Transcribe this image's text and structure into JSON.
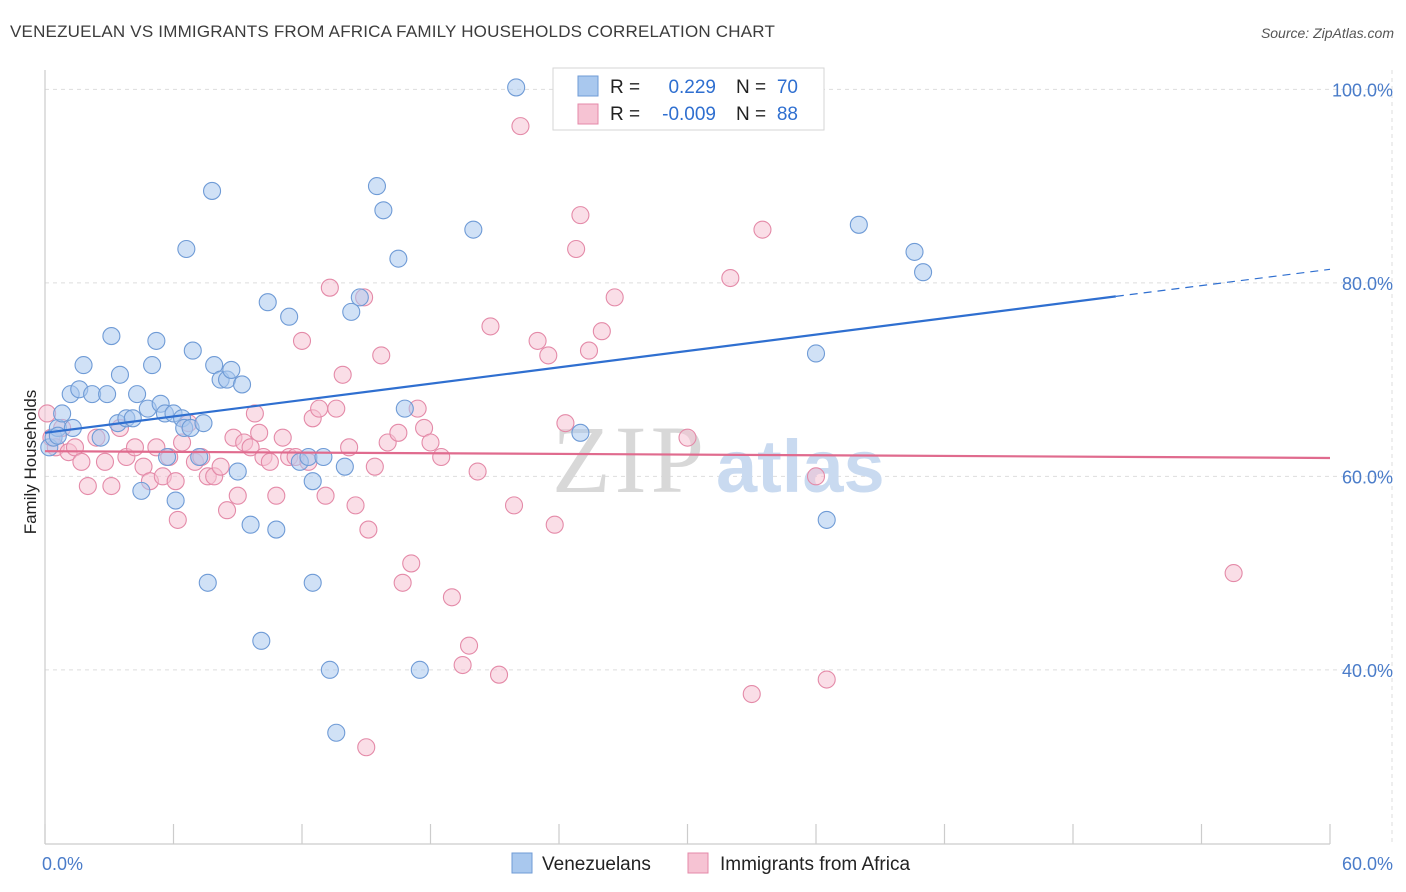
{
  "title": "VENEZUELAN VS IMMIGRANTS FROM AFRICA FAMILY HOUSEHOLDS CORRELATION CHART",
  "source": "Source: ZipAtlas.com",
  "watermark": {
    "zip": "ZIP",
    "atlas": "atlas"
  },
  "colors": {
    "blue_fill": "#a9c8ee",
    "blue_stroke": "#6f9bd6",
    "blue_line": "#2f6fd0",
    "pink_fill": "#f6c3d3",
    "pink_stroke": "#e48aa8",
    "pink_line": "#e06b8e",
    "grid": "#dddddd",
    "tick_text": "#4a7cc9"
  },
  "legend": {
    "r_label": "R =",
    "n_label": "N =",
    "rows": [
      {
        "r": "0.229",
        "n": "70",
        "series": "blue"
      },
      {
        "r": "-0.009",
        "n": "88",
        "series": "pink"
      }
    ]
  },
  "chart_data": {
    "type": "scatter",
    "title": "VENEZUELAN VS IMMIGRANTS FROM AFRICA FAMILY HOUSEHOLDS CORRELATION CHART",
    "xlabel": "",
    "ylabel": "Family Households",
    "xlim": [
      0,
      60
    ],
    "ylim": [
      22,
      102
    ],
    "x_tick_labels": [
      "0.0%",
      "60.0%"
    ],
    "y_ticks": [
      40,
      60,
      80,
      100
    ],
    "y_tick_labels": [
      "40.0%",
      "60.0%",
      "80.0%",
      "100.0%"
    ],
    "grid": true,
    "legend_position": "top-center",
    "series": [
      {
        "name": "Venezuelans",
        "color": "#a9c8ee",
        "trend": {
          "x": [
            0,
            50
          ],
          "y": [
            64.5,
            78.6
          ],
          "dashed_extension": {
            "x": [
              50,
              60
            ],
            "y": [
              78.6,
              81.4
            ]
          }
        },
        "points": [
          [
            0.2,
            63
          ],
          [
            0.4,
            64
          ],
          [
            0.6,
            65
          ],
          [
            0.8,
            66.5
          ],
          [
            1.2,
            68.5
          ],
          [
            1.3,
            65
          ],
          [
            1.6,
            69
          ],
          [
            1.8,
            71.5
          ],
          [
            2.2,
            68.5
          ],
          [
            2.6,
            64
          ],
          [
            2.9,
            68.5
          ],
          [
            3.1,
            74.5
          ],
          [
            3.4,
            65.5
          ],
          [
            3.5,
            70.5
          ],
          [
            3.8,
            66
          ],
          [
            4.1,
            66
          ],
          [
            4.3,
            68.5
          ],
          [
            4.5,
            58.5
          ],
          [
            4.8,
            67
          ],
          [
            5.0,
            71.5
          ],
          [
            5.2,
            74
          ],
          [
            5.4,
            67.5
          ],
          [
            5.6,
            66.5
          ],
          [
            5.7,
            62
          ],
          [
            6.0,
            66.5
          ],
          [
            6.1,
            57.5
          ],
          [
            6.4,
            66
          ],
          [
            6.5,
            65
          ],
          [
            6.6,
            83.5
          ],
          [
            6.8,
            65
          ],
          [
            6.9,
            73
          ],
          [
            7.2,
            62
          ],
          [
            7.4,
            65.5
          ],
          [
            7.6,
            49
          ],
          [
            7.8,
            89.5
          ],
          [
            7.9,
            71.5
          ],
          [
            8.2,
            70
          ],
          [
            8.5,
            70
          ],
          [
            8.7,
            71
          ],
          [
            9.0,
            60.5
          ],
          [
            9.2,
            69.5
          ],
          [
            9.6,
            55
          ],
          [
            10.1,
            43
          ],
          [
            10.4,
            78
          ],
          [
            10.8,
            54.5
          ],
          [
            11.4,
            76.5
          ],
          [
            11.9,
            61.5
          ],
          [
            12.3,
            62
          ],
          [
            12.5,
            59.5
          ],
          [
            12.5,
            49
          ],
          [
            13.0,
            62
          ],
          [
            13.3,
            40
          ],
          [
            13.6,
            33.5
          ],
          [
            14.0,
            61
          ],
          [
            14.3,
            77
          ],
          [
            14.7,
            78.5
          ],
          [
            15.5,
            90
          ],
          [
            15.8,
            87.5
          ],
          [
            16.5,
            82.5
          ],
          [
            16.8,
            67
          ],
          [
            17.5,
            40
          ],
          [
            20,
            85.5
          ],
          [
            22,
            100.2
          ],
          [
            25,
            64.5
          ],
          [
            36,
            72.7
          ],
          [
            36.5,
            55.5
          ],
          [
            38,
            86
          ],
          [
            40.6,
            83.2
          ],
          [
            41,
            81.1
          ],
          [
            0.6,
            64.2
          ]
        ]
      },
      {
        "name": "Immigrants from Africa",
        "color": "#f6c3d3",
        "trend": {
          "x": [
            0,
            60
          ],
          "y": [
            62.6,
            61.9
          ]
        },
        "points": [
          [
            0.1,
            66.5
          ],
          [
            0.3,
            64
          ],
          [
            0.5,
            63
          ],
          [
            0.8,
            65
          ],
          [
            1.1,
            62.5
          ],
          [
            1.4,
            63
          ],
          [
            1.7,
            61.5
          ],
          [
            2.0,
            59
          ],
          [
            2.4,
            64
          ],
          [
            2.8,
            61.5
          ],
          [
            3.1,
            59
          ],
          [
            3.5,
            65
          ],
          [
            3.8,
            62
          ],
          [
            4.2,
            63
          ],
          [
            4.6,
            61
          ],
          [
            4.9,
            59.5
          ],
          [
            5.2,
            63
          ],
          [
            5.5,
            60
          ],
          [
            5.8,
            62
          ],
          [
            6.1,
            59.5
          ],
          [
            6.2,
            55.5
          ],
          [
            6.4,
            63.5
          ],
          [
            6.7,
            65.5
          ],
          [
            7.0,
            61.5
          ],
          [
            7.3,
            62
          ],
          [
            7.6,
            60
          ],
          [
            7.9,
            60
          ],
          [
            8.2,
            61
          ],
          [
            8.5,
            56.5
          ],
          [
            8.8,
            64
          ],
          [
            9.0,
            58
          ],
          [
            9.3,
            63.5
          ],
          [
            9.6,
            63
          ],
          [
            9.8,
            66.5
          ],
          [
            10.0,
            64.5
          ],
          [
            10.2,
            62
          ],
          [
            10.5,
            61.5
          ],
          [
            10.8,
            58
          ],
          [
            11.1,
            64
          ],
          [
            11.4,
            62
          ],
          [
            11.7,
            62
          ],
          [
            12,
            74
          ],
          [
            12.3,
            61.5
          ],
          [
            12.5,
            66
          ],
          [
            12.8,
            67
          ],
          [
            13.1,
            58
          ],
          [
            13.3,
            79.5
          ],
          [
            13.6,
            67
          ],
          [
            13.9,
            70.5
          ],
          [
            14.2,
            63
          ],
          [
            14.5,
            57
          ],
          [
            14.9,
            78.5
          ],
          [
            15.1,
            54.5
          ],
          [
            15.4,
            61
          ],
          [
            15.7,
            72.5
          ],
          [
            16,
            63.5
          ],
          [
            16.5,
            64.5
          ],
          [
            16.7,
            49
          ],
          [
            17.1,
            51
          ],
          [
            17.4,
            67
          ],
          [
            17.7,
            65
          ],
          [
            18.0,
            63.5
          ],
          [
            18.5,
            62
          ],
          [
            19.0,
            47.5
          ],
          [
            19.5,
            40.5
          ],
          [
            19.8,
            42.5
          ],
          [
            20.2,
            60.5
          ],
          [
            20.8,
            75.5
          ],
          [
            21.2,
            39.5
          ],
          [
            21.9,
            57
          ],
          [
            22.2,
            96.2
          ],
          [
            23,
            74
          ],
          [
            23.5,
            72.5
          ],
          [
            23.8,
            55
          ],
          [
            24.3,
            65.5
          ],
          [
            24.8,
            83.5
          ],
          [
            25.0,
            87
          ],
          [
            25.4,
            73
          ],
          [
            26.0,
            75
          ],
          [
            26.6,
            78.5
          ],
          [
            30,
            64
          ],
          [
            32,
            80.5
          ],
          [
            33,
            37.5
          ],
          [
            33.5,
            85.5
          ],
          [
            36,
            60
          ],
          [
            36.5,
            39
          ],
          [
            55.5,
            50
          ],
          [
            15,
            32
          ]
        ]
      }
    ]
  },
  "bottom_legend": [
    {
      "label": "Venezuelans",
      "series": "blue"
    },
    {
      "label": "Immigrants from Africa",
      "series": "pink"
    }
  ]
}
